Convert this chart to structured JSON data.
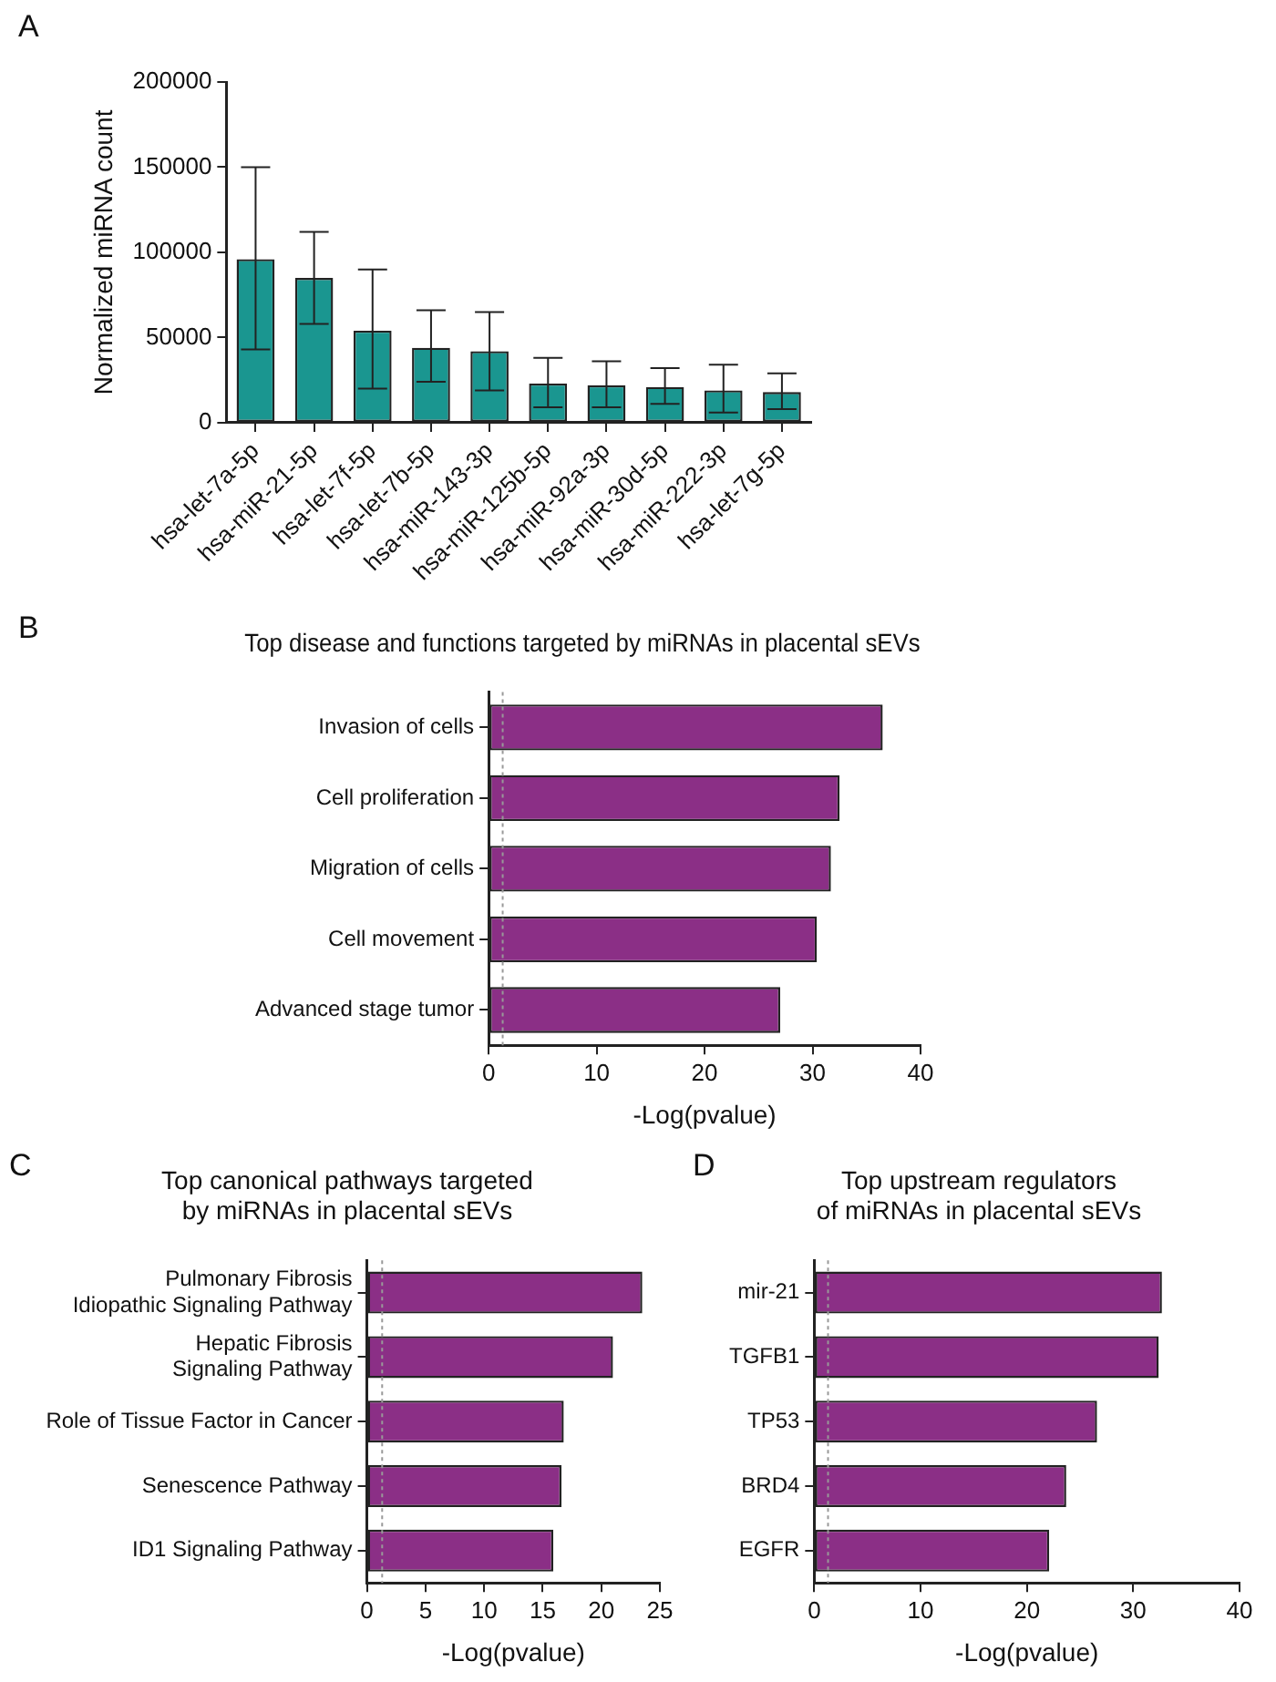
{
  "chart_data": [
    {
      "type": "bar",
      "ylabel": "Normalized miRNA count",
      "annotations": [
        "A"
      ],
      "categories": [
        "hsa-let-7a-5p",
        "hsa-miR-21-5p",
        "hsa-let-7f-5p",
        "hsa-let-7b-5p",
        "hsa-miR-143-3p",
        "hsa-miR-125b-5p",
        "hsa-miR-92a-3p",
        "hsa-miR-30d-5p",
        "hsa-miR-222-3p",
        "hsa-let-7g-5p"
      ],
      "values": [
        96000,
        85000,
        54000,
        44000,
        42000,
        23000,
        22000,
        21000,
        19000,
        18000
      ],
      "errors": [
        [
          43000,
          150000
        ],
        [
          58000,
          112000
        ],
        [
          20000,
          90000
        ],
        [
          24000,
          66000
        ],
        [
          19000,
          65000
        ],
        [
          9000,
          38000
        ],
        [
          9000,
          36000
        ],
        [
          11000,
          32000
        ],
        [
          6000,
          34000
        ],
        [
          8000,
          29000
        ]
      ],
      "color": "#1a9690",
      "ylim": [
        0,
        200000
      ],
      "yticks": [
        0,
        50000,
        100000,
        150000,
        200000
      ],
      "grid": false,
      "legend": false
    },
    {
      "type": "bar",
      "orientation": "horizontal",
      "title": "Top disease and functions targeted by miRNAs in placental sEVs",
      "xlabel": "-Log(pvalue)",
      "annotations": [
        "B"
      ],
      "categories": [
        "Invasion of cells",
        "Cell proliferation",
        "Migration of cells",
        "Cell movement",
        "Advanced stage tumor"
      ],
      "values": [
        36.5,
        32.5,
        31.7,
        30.4,
        27.0
      ],
      "color": "#8b2f86",
      "xlim": [
        0,
        40
      ],
      "xticks": [
        0,
        10,
        20,
        30,
        40
      ],
      "ref_lines": [
        {
          "axis": "x",
          "value": 1.3,
          "color": "#999999",
          "line_style": "dotted"
        }
      ],
      "grid": false,
      "legend": false
    },
    {
      "type": "bar",
      "orientation": "horizontal",
      "title": "Top canonical pathways targeted\nby miRNAs in placental sEVs",
      "xlabel": "-Log(pvalue)",
      "annotations": [
        "C"
      ],
      "categories": [
        "Pulmonary Fibrosis\nIdiopathic Signaling Pathway",
        "Hepatic Fibrosis\nSignaling Pathway",
        "Role of Tissue Factor in Cancer",
        "Senescence Pathway",
        "ID1 Signaling Pathway"
      ],
      "values": [
        23.5,
        21.0,
        16.8,
        16.6,
        15.9
      ],
      "color": "#8b2f86",
      "xlim": [
        0,
        25
      ],
      "xticks": [
        0,
        5,
        10,
        15,
        20,
        25
      ],
      "ref_lines": [
        {
          "axis": "x",
          "value": 1.3,
          "color": "#999999",
          "line_style": "dotted"
        }
      ],
      "grid": false,
      "legend": false
    },
    {
      "type": "bar",
      "orientation": "horizontal",
      "title": "Top upstream regulators\nof miRNAs in placental sEVs",
      "xlabel": "-Log(pvalue)",
      "annotations": [
        "D"
      ],
      "categories": [
        "mir-21",
        "TGFB1",
        "TP53",
        "BRD4",
        "EGFR"
      ],
      "values": [
        32.7,
        32.4,
        26.6,
        23.7,
        22.1
      ],
      "color": "#8b2f86",
      "xlim": [
        0,
        40
      ],
      "xticks": [
        0,
        10,
        20,
        30,
        40
      ],
      "ref_lines": [
        {
          "axis": "x",
          "value": 1.3,
          "color": "#999999",
          "line_style": "dotted"
        }
      ],
      "grid": false,
      "legend": false
    }
  ]
}
